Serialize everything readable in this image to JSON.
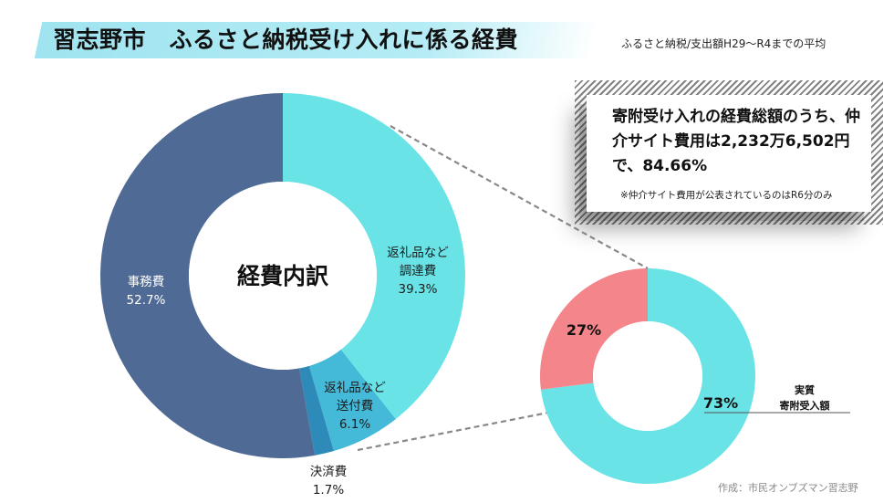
{
  "header": {
    "title": "習志野市　ふるさと納税受け入れに係る経費",
    "subtitle": "ふるさと納税/支出額H29〜R4までの平均"
  },
  "note": {
    "text": "寄附受け入れの経費総額のうち、仲介サイト費用は2,232万6,502円 で、84.66%",
    "small": "※仲介サイト費用が公表されているのはR6分のみ"
  },
  "credit": "作成：市民オンブズマン習志野",
  "colors": {
    "main_returngift_procurement": "#6ae3e7",
    "main_returngift_shipping": "#44b9d8",
    "main_settlement": "#2e8ab8",
    "main_admin": "#4f6a94",
    "sub_actual": "#6ae3e7",
    "sub_other": "#f4858a",
    "title_bar": "#9fe4f0"
  },
  "chart_data": [
    {
      "type": "pie",
      "title": "経費内訳",
      "slices": [
        {
          "label_lines": [
            "返礼品など",
            "調達費"
          ],
          "value": 39.3,
          "value_label": "39.3%",
          "color_key": "main_returngift_procurement",
          "text_color": "#1c1c1c"
        },
        {
          "label_lines": [
            "返礼品など",
            "送付費"
          ],
          "value": 6.1,
          "value_label": "6.1%",
          "color_key": "main_returngift_shipping",
          "text_color": "#1c1c1c"
        },
        {
          "label_lines": [
            "決済費"
          ],
          "value": 1.7,
          "value_label": "1.7%",
          "color_key": "main_settlement",
          "text_color": "#1c1c1c"
        },
        {
          "label_lines": [
            "事務費"
          ],
          "value": 52.7,
          "value_label": "52.7%",
          "color_key": "main_admin",
          "text_color": "#ffffff"
        }
      ]
    },
    {
      "type": "pie",
      "title": "",
      "slices": [
        {
          "label_lines": [],
          "value": 73,
          "value_label": "73%",
          "color_key": "sub_actual",
          "text_color": "#111111"
        },
        {
          "label_lines": [],
          "value": 27,
          "value_label": "27%",
          "color_key": "sub_other",
          "text_color": "#111111"
        }
      ],
      "callout_lines": [
        "実質",
        "寄附受入額"
      ]
    }
  ]
}
